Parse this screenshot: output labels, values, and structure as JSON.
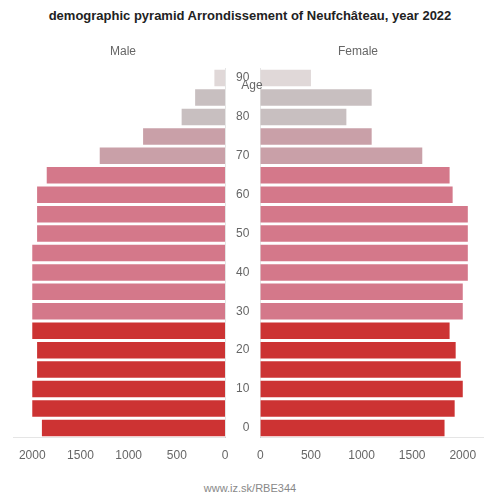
{
  "chart_data": {
    "type": "bar",
    "orientation": "horizontal",
    "title": "demographic pyramid Arrondissement of Neufchâteau, year 2022",
    "ylabel": "Age",
    "footer": "www.iz.sk/RBE344",
    "categories": [
      "0",
      null,
      "10",
      null,
      "20",
      null,
      "30",
      null,
      "40",
      null,
      "50",
      null,
      "60",
      null,
      "70",
      null,
      "80",
      null,
      "90"
    ],
    "series": [
      {
        "name": "Male",
        "values": [
          1900,
          2000,
          2000,
          1950,
          1950,
          2000,
          2000,
          2000,
          2000,
          2000,
          1950,
          1950,
          1950,
          1850,
          1300,
          850,
          450,
          310,
          110
        ],
        "colors": [
          "#cd3333",
          "#cc3333",
          "#cc3333",
          "#cc3333",
          "#cc3333",
          "#cc3333",
          "#d4788a",
          "#d4788a",
          "#d4788a",
          "#d4788a",
          "#d4788a",
          "#d4788a",
          "#d4788a",
          "#d4788a",
          "#c9a0a8",
          "#c9a0a8",
          "#c8bfc0",
          "#c8bfc0",
          "#e0d8d8"
        ]
      },
      {
        "name": "Female",
        "values": [
          1820,
          1920,
          2000,
          1980,
          1930,
          1870,
          2000,
          2000,
          2050,
          2050,
          2050,
          2050,
          1900,
          1870,
          1600,
          1100,
          850,
          1100,
          500
        ],
        "colors": [
          "#cd3333",
          "#cc3333",
          "#cc3333",
          "#cc3333",
          "#cc3333",
          "#cc3333",
          "#d4788a",
          "#d4788a",
          "#d4788a",
          "#d4788a",
          "#d4788a",
          "#d4788a",
          "#d4788a",
          "#d4788a",
          "#c9a0a8",
          "#c9a0a8",
          "#c8bfc0",
          "#c8bfc0",
          "#e0d8d8"
        ]
      }
    ],
    "xlim": [
      0,
      2200
    ],
    "xticks": [
      0,
      500,
      1000,
      1500,
      2000
    ],
    "grid": false
  }
}
